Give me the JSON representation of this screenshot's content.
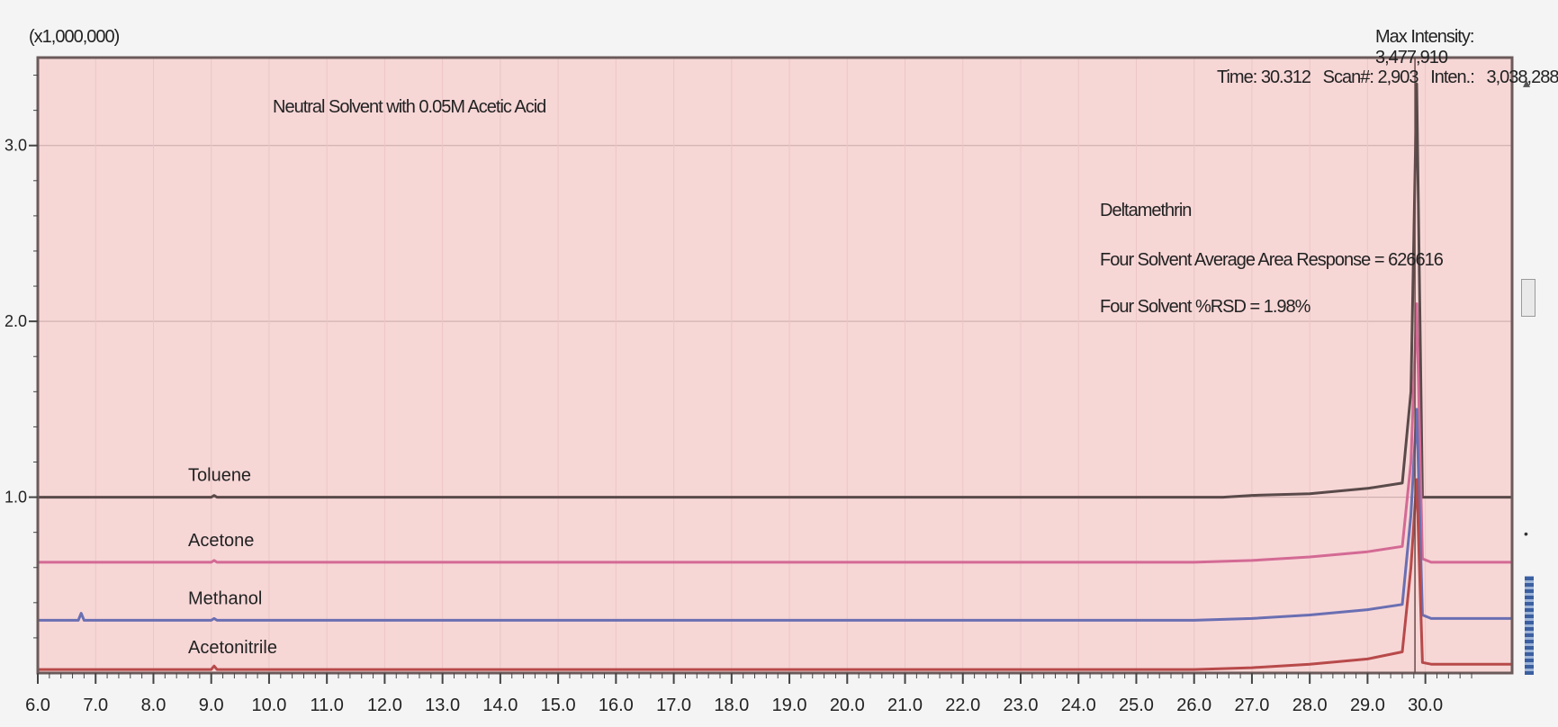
{
  "window": {
    "y_scale_readout": "(x1,000,000)",
    "max_intensity_readout": "Max Intensity: 3,477,910",
    "cursor_readout": "Time: 30.312   Scan#: 2,903   Inten.:   3,038,288"
  },
  "colors": {
    "plot_bg": "#f7d6d6",
    "frame": "#6b5a5a",
    "grid": "#c9a9a9",
    "tick": "#444444"
  },
  "chart_data": {
    "type": "line",
    "title": "Neutral Solvent with 0.05M Acetic Acid",
    "annotation": [
      "Deltamethrin",
      "Four Solvent Average Area Response = 626616",
      "Four Solvent %RSD = 1.98%"
    ],
    "xlabel": "",
    "ylabel": "",
    "x_ticks": [
      "6.0",
      "7.0",
      "8.0",
      "9.0",
      "10.0",
      "11.0",
      "12.0",
      "13.0",
      "14.0",
      "15.0",
      "16.0",
      "17.0",
      "18.0",
      "19.0",
      "20.0",
      "21.0",
      "22.0",
      "23.0",
      "24.0",
      "25.0",
      "26.0",
      "27.0",
      "28.0",
      "29.0",
      "30.0"
    ],
    "xlim": [
      6.0,
      31.5
    ],
    "y_ticks": [
      "1.0",
      "2.0",
      "3.0"
    ],
    "ylim": [
      0.0,
      3.5
    ],
    "grid": true,
    "series": [
      {
        "name": "Toluene",
        "color": "#5a4a4a",
        "x": [
          6.0,
          9.0,
          9.05,
          9.1,
          26.5,
          27.0,
          28.0,
          29.0,
          29.6,
          29.75,
          29.85,
          29.95,
          30.1,
          31.5
        ],
        "y": [
          1.0,
          1.0,
          1.01,
          1.0,
          1.0,
          1.01,
          1.02,
          1.05,
          1.08,
          1.6,
          3.35,
          1.0,
          1.0,
          1.0
        ]
      },
      {
        "name": "Acetone",
        "color": "#d36a94",
        "x": [
          6.0,
          9.0,
          9.05,
          9.1,
          26.0,
          27.0,
          28.0,
          29.0,
          29.6,
          29.75,
          29.85,
          29.95,
          30.1,
          31.5
        ],
        "y": [
          0.63,
          0.63,
          0.64,
          0.63,
          0.63,
          0.64,
          0.66,
          0.69,
          0.72,
          1.2,
          2.1,
          0.65,
          0.63,
          0.63
        ]
      },
      {
        "name": "Methanol",
        "color": "#6a6fb2",
        "x": [
          6.0,
          6.7,
          6.75,
          6.8,
          9.0,
          9.05,
          9.1,
          26.0,
          27.0,
          28.0,
          29.0,
          29.6,
          29.75,
          29.85,
          29.95,
          30.1,
          31.5
        ],
        "y": [
          0.3,
          0.3,
          0.34,
          0.3,
          0.3,
          0.31,
          0.3,
          0.3,
          0.31,
          0.33,
          0.36,
          0.39,
          0.9,
          1.5,
          0.33,
          0.31,
          0.31
        ]
      },
      {
        "name": "Acetonitrile",
        "color": "#b84a4a",
        "x": [
          6.0,
          9.0,
          9.05,
          9.1,
          26.0,
          27.0,
          28.0,
          29.0,
          29.6,
          29.75,
          29.85,
          29.95,
          30.1,
          31.5
        ],
        "y": [
          0.02,
          0.02,
          0.04,
          0.02,
          0.02,
          0.03,
          0.05,
          0.08,
          0.12,
          0.6,
          1.1,
          0.06,
          0.05,
          0.05
        ]
      }
    ]
  }
}
